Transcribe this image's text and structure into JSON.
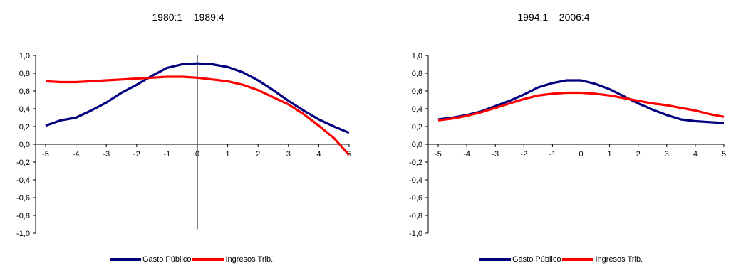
{
  "colors": {
    "series1": "#00007F",
    "series2": "#FF0000",
    "axis": "#000000"
  },
  "legend": {
    "series1": "Gasto Público",
    "series2": "Ingresos Trib."
  },
  "chart_data": [
    {
      "type": "line",
      "title": "1980:1 – 1989:4",
      "xlabel": "",
      "ylabel": "",
      "xlim": [
        -5,
        5
      ],
      "ylim": [
        -1.0,
        1.0
      ],
      "y_ticks": [
        "1,0",
        "0,8",
        "0,6",
        "0,4",
        "0,2",
        "0,0",
        "-0,2",
        "-0,4",
        "-0,6",
        "-0,8",
        "-1,0"
      ],
      "x_ticks": [
        "-5",
        "-4",
        "-3",
        "-2",
        "-1",
        "0",
        "1",
        "2",
        "3",
        "4",
        "5"
      ],
      "grid": false,
      "legend_position": "bottom",
      "x": [
        -5,
        -4.5,
        -4,
        -3.5,
        -3,
        -2.5,
        -2,
        -1.5,
        -1,
        -0.5,
        0,
        0.5,
        1,
        1.5,
        2,
        2.5,
        3,
        3.5,
        4,
        4.5,
        5
      ],
      "series": [
        {
          "name": "Gasto Público",
          "values": [
            0.21,
            0.27,
            0.3,
            0.38,
            0.47,
            0.58,
            0.67,
            0.77,
            0.86,
            0.9,
            0.91,
            0.9,
            0.87,
            0.81,
            0.72,
            0.61,
            0.49,
            0.38,
            0.28,
            0.2,
            0.13
          ]
        },
        {
          "name": "Ingresos Trib.",
          "values": [
            0.71,
            0.7,
            0.7,
            0.71,
            0.72,
            0.73,
            0.74,
            0.75,
            0.76,
            0.76,
            0.75,
            0.73,
            0.71,
            0.67,
            0.61,
            0.53,
            0.45,
            0.34,
            0.21,
            0.07,
            -0.12
          ]
        }
      ]
    },
    {
      "type": "line",
      "title": "1994:1 – 2006:4",
      "xlabel": "",
      "ylabel": "",
      "xlim": [
        -5,
        5
      ],
      "ylim": [
        -1.0,
        1.0
      ],
      "y_ticks": [
        "1,0",
        "0,8",
        "0,6",
        "0,4",
        "0,2",
        "0,0",
        "-0,2",
        "-0,4",
        "-0,6",
        "-0,8",
        "-1,0"
      ],
      "x_ticks": [
        "-5",
        "-4",
        "-3",
        "-2",
        "-1",
        "0",
        "1",
        "2",
        "3",
        "4",
        "5"
      ],
      "grid": false,
      "legend_position": "bottom",
      "x": [
        -5,
        -4.5,
        -4,
        -3.5,
        -3,
        -2.5,
        -2,
        -1.5,
        -1,
        -0.5,
        0,
        0.5,
        1,
        1.5,
        2,
        2.5,
        3,
        3.5,
        4,
        4.5,
        5
      ],
      "series": [
        {
          "name": "Gasto Público",
          "values": [
            0.28,
            0.3,
            0.33,
            0.37,
            0.43,
            0.49,
            0.56,
            0.64,
            0.69,
            0.72,
            0.72,
            0.68,
            0.62,
            0.54,
            0.46,
            0.39,
            0.33,
            0.28,
            0.26,
            0.25,
            0.24
          ]
        },
        {
          "name": "Ingresos Trib.",
          "values": [
            0.27,
            0.29,
            0.32,
            0.36,
            0.41,
            0.46,
            0.51,
            0.55,
            0.57,
            0.58,
            0.58,
            0.57,
            0.55,
            0.52,
            0.49,
            0.46,
            0.44,
            0.41,
            0.38,
            0.34,
            0.31
          ]
        }
      ]
    }
  ]
}
